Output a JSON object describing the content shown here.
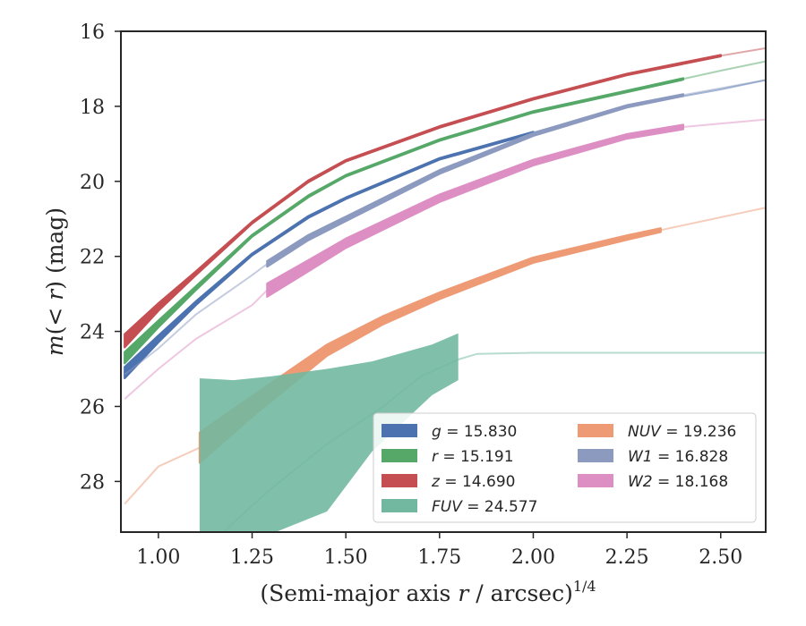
{
  "chart_data": {
    "type": "line",
    "xlabel": "(Semi-major axis r / arcsec)",
    "xlabel_parts": {
      "pre": "(Semi-major axis ",
      "var": "r",
      "post": " / arcsec)",
      "sup": "1/4"
    },
    "ylabel": "m(< r) (mag)",
    "ylabel_parts": {
      "m": "m",
      "open": "(",
      "lt": "< ",
      "r": "r",
      "close": ")",
      "unit": " (mag)"
    },
    "xlim": [
      0.9,
      2.62
    ],
    "ylim": [
      29.35,
      16.0
    ],
    "y_inverted": true,
    "xticks": [
      1.0,
      1.25,
      1.5,
      1.75,
      2.0,
      2.25,
      2.5
    ],
    "xtick_labels": [
      "1.00",
      "1.25",
      "1.50",
      "1.75",
      "2.00",
      "2.25",
      "2.50"
    ],
    "yticks": [
      16,
      18,
      20,
      22,
      24,
      26,
      28
    ],
    "ytick_labels": [
      "16",
      "18",
      "20",
      "22",
      "24",
      "26",
      "28"
    ],
    "grid": false,
    "legend_placement": "lower-right",
    "series": [
      {
        "key": "z",
        "name": "z",
        "value": "= 14.690",
        "color": "#c44e52",
        "x": [
          0.91,
          1.0,
          1.1,
          1.25,
          1.4,
          1.5,
          1.75,
          2.0,
          2.25,
          2.5,
          2.62
        ],
        "y": [
          24.25,
          23.35,
          22.45,
          21.1,
          20.0,
          19.45,
          18.55,
          17.8,
          17.15,
          16.65,
          16.45
        ],
        "band": [
          0.35,
          0.2,
          0.1,
          0.05,
          0.05,
          0.04,
          0.04,
          0.04,
          0.04,
          0.04,
          0.04
        ],
        "measured_max": 2.5
      },
      {
        "key": "r",
        "name": "r",
        "value": "= 15.191",
        "color": "#55a868",
        "x": [
          0.91,
          1.0,
          1.1,
          1.25,
          1.4,
          1.5,
          1.75,
          2.0,
          2.25,
          2.5,
          2.62
        ],
        "y": [
          24.7,
          23.8,
          22.85,
          21.45,
          20.4,
          19.85,
          18.9,
          18.15,
          17.6,
          17.05,
          16.8
        ],
        "band": [
          0.3,
          0.18,
          0.1,
          0.05,
          0.05,
          0.04,
          0.04,
          0.04,
          0.04,
          0.04,
          0.04
        ],
        "measured_max": 2.4
      },
      {
        "key": "g",
        "name": "g",
        "value": "= 15.830",
        "color": "#4c72b0",
        "x": [
          0.91,
          1.0,
          1.1,
          1.25,
          1.4,
          1.5,
          1.75,
          2.0,
          2.25,
          2.5,
          2.62
        ],
        "y": [
          25.1,
          24.2,
          23.25,
          21.95,
          20.95,
          20.45,
          19.4,
          18.7,
          18.0,
          17.55,
          17.3
        ],
        "band": [
          0.3,
          0.18,
          0.1,
          0.05,
          0.05,
          0.04,
          0.04,
          0.04,
          0.04,
          0.04,
          0.04
        ],
        "measured_max": 2.0
      },
      {
        "key": "W1",
        "name": "W1",
        "value": "= 16.828",
        "color": "#8c9ac0",
        "x": [
          0.91,
          1.0,
          1.1,
          1.25,
          1.29,
          1.4,
          1.5,
          1.75,
          2.0,
          2.25,
          2.4,
          2.62
        ],
        "y": [
          25.15,
          24.45,
          23.55,
          22.5,
          22.2,
          21.5,
          21.0,
          19.75,
          18.75,
          18.0,
          17.7,
          17.3
        ],
        "band": [
          0.05,
          0.05,
          0.05,
          0.05,
          0.15,
          0.14,
          0.12,
          0.1,
          0.08,
          0.06,
          0.05,
          0.04
        ],
        "measured_min": 1.29,
        "measured_max": 2.4
      },
      {
        "key": "W2",
        "name": "W2",
        "value": "= 18.168",
        "color": "#dd8fc4",
        "x": [
          0.91,
          1.0,
          1.1,
          1.25,
          1.29,
          1.4,
          1.5,
          1.75,
          2.0,
          2.25,
          2.4,
          2.62
        ],
        "y": [
          25.8,
          25.0,
          24.2,
          23.3,
          22.9,
          22.25,
          21.65,
          20.45,
          19.5,
          18.8,
          18.55,
          18.35
        ],
        "band": [
          0.05,
          0.05,
          0.05,
          0.05,
          0.35,
          0.3,
          0.25,
          0.2,
          0.15,
          0.12,
          0.12,
          0.04
        ],
        "measured_min": 1.29,
        "measured_max": 2.4
      },
      {
        "key": "NUV",
        "name": "NUV",
        "value": "= 19.236",
        "color": "#ee9a75",
        "x": [
          0.91,
          1.0,
          1.11,
          1.25,
          1.45,
          1.6,
          1.75,
          2.0,
          2.25,
          2.34,
          2.62
        ],
        "y": [
          28.6,
          27.6,
          27.1,
          26.0,
          24.5,
          23.7,
          23.05,
          22.1,
          21.5,
          21.3,
          20.7
        ],
        "band": [
          0.05,
          0.05,
          0.8,
          0.55,
          0.3,
          0.22,
          0.18,
          0.14,
          0.12,
          0.1,
          0.04
        ],
        "measured_min": 1.11,
        "measured_max": 2.34
      },
      {
        "key": "FUV",
        "name": "FUV",
        "value": "= 24.577",
        "color": "#72b8a0",
        "x": [
          1.11,
          1.2,
          1.3,
          1.45,
          1.6,
          1.7,
          1.8,
          1.85,
          2.0,
          2.25,
          2.5,
          2.62
        ],
        "y": [
          30.0,
          29.1,
          28.2,
          27.0,
          26.0,
          25.2,
          24.75,
          24.6,
          24.57,
          24.57,
          24.57,
          24.57
        ],
        "band_lower": [
          25.25,
          25.3,
          25.2,
          25.0,
          24.8,
          24.35,
          24.05
        ],
        "band_upper": [
          30.0,
          29.9,
          29.4,
          28.8,
          27.2,
          25.7,
          25.3
        ],
        "band_x": [
          1.11,
          1.2,
          1.3,
          1.45,
          1.57,
          1.73,
          1.8
        ],
        "measured_min": 1.11,
        "measured_max": 1.8
      }
    ],
    "legend": [
      {
        "key": "g",
        "label": "g",
        "value": "= 15.830",
        "color": "#4c72b0"
      },
      {
        "key": "r",
        "label": "r",
        "value": "= 15.191",
        "color": "#55a868"
      },
      {
        "key": "z",
        "label": "z",
        "value": "= 14.690",
        "color": "#c44e52"
      },
      {
        "key": "FUV",
        "label": "FUV",
        "value": "= 24.577",
        "color": "#72b8a0"
      },
      {
        "key": "NUV",
        "label": "NUV",
        "value": "= 19.236",
        "color": "#ee9a75"
      },
      {
        "key": "W1",
        "label": "W1",
        "value": "= 16.828",
        "color": "#8c9ac0"
      },
      {
        "key": "W2",
        "label": "W2",
        "value": "= 18.168",
        "color": "#dd8fc4"
      }
    ]
  }
}
